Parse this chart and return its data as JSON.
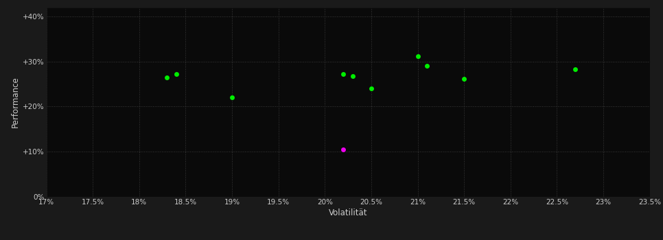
{
  "background_color": "#1a1a1a",
  "plot_bg_color": "#0a0a0a",
  "grid_color": "#3a3a3a",
  "text_color": "#cccccc",
  "xlabel": "Volatilität",
  "ylabel": "Performance",
  "xlim": [
    0.17,
    0.235
  ],
  "ylim": [
    0.0,
    0.42
  ],
  "xticks": [
    0.17,
    0.175,
    0.18,
    0.185,
    0.19,
    0.195,
    0.2,
    0.205,
    0.21,
    0.215,
    0.22,
    0.225,
    0.23,
    0.235
  ],
  "xtick_labels": [
    "17%",
    "17.5%",
    "18%",
    "18.5%",
    "19%",
    "19.5%",
    "20%",
    "20.5%",
    "21%",
    "21.5%",
    "22%",
    "22.5%",
    "23%",
    "23.5%"
  ],
  "yticks": [
    0.0,
    0.1,
    0.2,
    0.3,
    0.4
  ],
  "ytick_labels": [
    "0%",
    "+10%",
    "+20%",
    "+30%",
    "+40%"
  ],
  "green_points": [
    [
      0.183,
      0.265
    ],
    [
      0.184,
      0.272
    ],
    [
      0.19,
      0.22
    ],
    [
      0.202,
      0.272
    ],
    [
      0.203,
      0.268
    ],
    [
      0.205,
      0.24
    ],
    [
      0.21,
      0.312
    ],
    [
      0.211,
      0.29
    ],
    [
      0.215,
      0.262
    ],
    [
      0.227,
      0.282
    ]
  ],
  "magenta_points": [
    [
      0.202,
      0.105
    ]
  ],
  "green_color": "#00ee00",
  "magenta_color": "#ee00ee",
  "marker_size": 5
}
